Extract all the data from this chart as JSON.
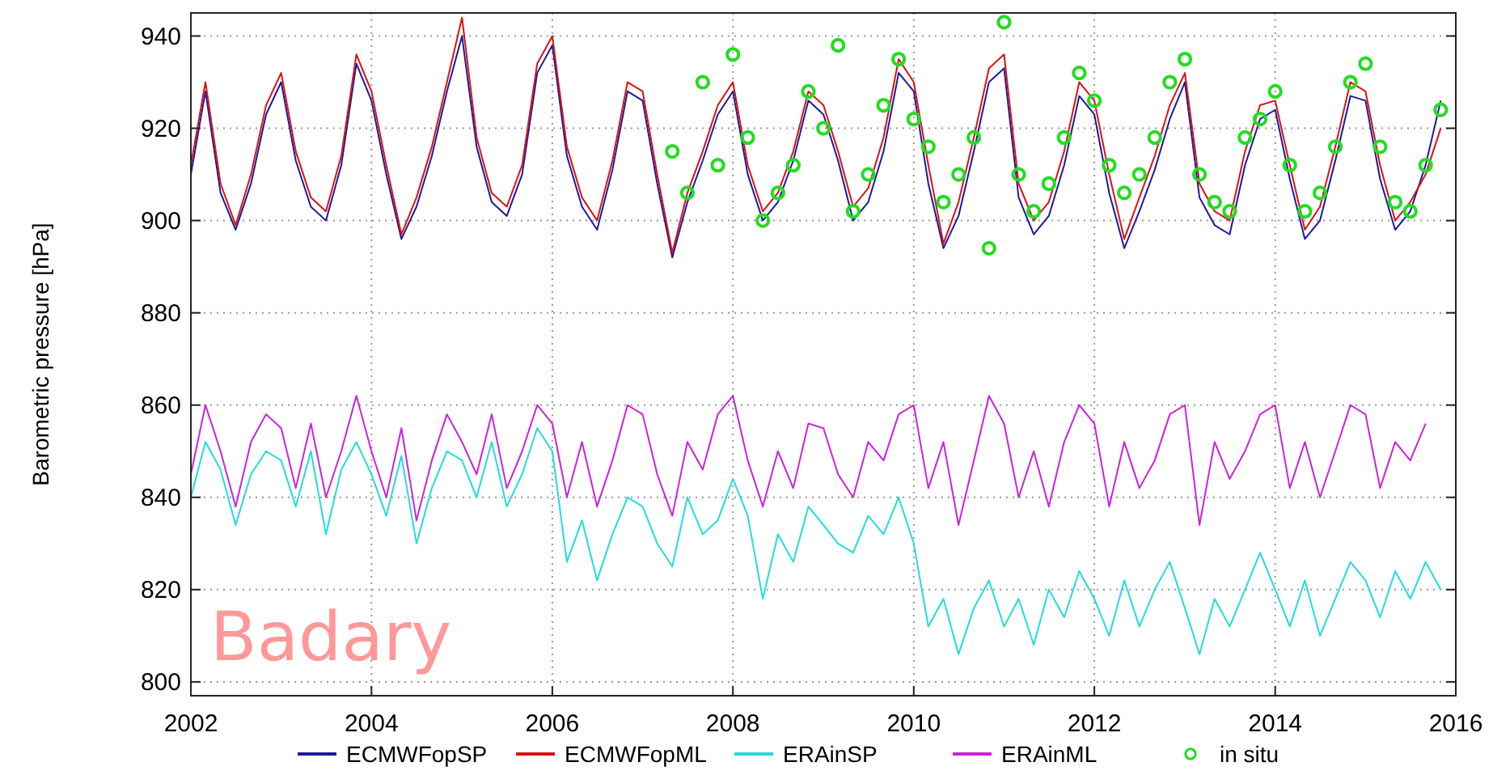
{
  "chart_data": {
    "type": "line",
    "ylabel": "Barometric pressure [hPa]",
    "annotations": [
      "Badary"
    ],
    "x": [
      "2002-01",
      "2002-03",
      "2002-05",
      "2002-07",
      "2002-09",
      "2002-11",
      "2003-01",
      "2003-03",
      "2003-05",
      "2003-07",
      "2003-09",
      "2003-11",
      "2004-01",
      "2004-03",
      "2004-05",
      "2004-07",
      "2004-09",
      "2004-11",
      "2005-01",
      "2005-03",
      "2005-05",
      "2005-07",
      "2005-09",
      "2005-11",
      "2006-01",
      "2006-03",
      "2006-05",
      "2006-07",
      "2006-09",
      "2006-11",
      "2007-01",
      "2007-03",
      "2007-05",
      "2007-07",
      "2007-09",
      "2007-11",
      "2008-01",
      "2008-03",
      "2008-05",
      "2008-07",
      "2008-09",
      "2008-11",
      "2009-01",
      "2009-03",
      "2009-05",
      "2009-07",
      "2009-09",
      "2009-11",
      "2010-01",
      "2010-03",
      "2010-05",
      "2010-07",
      "2010-09",
      "2010-11",
      "2011-01",
      "2011-03",
      "2011-05",
      "2011-07",
      "2011-09",
      "2011-11",
      "2012-01",
      "2012-03",
      "2012-05",
      "2012-07",
      "2012-09",
      "2012-11",
      "2013-01",
      "2013-03",
      "2013-05",
      "2013-07",
      "2013-09",
      "2013-11",
      "2014-01",
      "2014-03",
      "2014-05",
      "2014-07",
      "2014-09",
      "2014-11",
      "2015-01",
      "2015-03",
      "2015-05",
      "2015-07",
      "2015-09",
      "2015-11"
    ],
    "series": [
      {
        "name": "ECMWFopSP",
        "color": "#1a1aa0",
        "values": [
          910,
          928,
          906,
          898,
          908,
          923,
          930,
          913,
          903,
          900,
          912,
          934,
          926,
          910,
          896,
          903,
          914,
          928,
          940,
          916,
          904,
          901,
          910,
          932,
          938,
          914,
          903,
          898,
          911,
          928,
          926,
          908,
          892,
          904,
          913,
          923,
          928,
          910,
          900,
          904,
          913,
          926,
          923,
          913,
          900,
          904,
          915,
          932,
          928,
          908,
          894,
          901,
          915,
          930,
          933,
          905,
          897,
          901,
          912,
          927,
          923,
          906,
          894,
          902,
          911,
          922,
          930,
          905,
          899,
          897,
          912,
          922,
          924,
          909,
          896,
          900,
          913,
          927,
          926,
          909,
          898,
          902,
          912,
          926
        ]
      },
      {
        "name": "ECMWFopML",
        "color": "#dd1111",
        "values": [
          912,
          930,
          908,
          899,
          910,
          925,
          932,
          915,
          905,
          902,
          914,
          936,
          928,
          912,
          897,
          905,
          916,
          930,
          944,
          918,
          906,
          903,
          912,
          934,
          940,
          916,
          905,
          900,
          913,
          930,
          928,
          910,
          893,
          906,
          915,
          925,
          930,
          912,
          902,
          906,
          915,
          928,
          925,
          915,
          903,
          907,
          918,
          935,
          930,
          912,
          895,
          904,
          918,
          933,
          936,
          908,
          900,
          904,
          915,
          930,
          926,
          910,
          896,
          905,
          914,
          925,
          932,
          908,
          902,
          900,
          915,
          925,
          926,
          912,
          898,
          903,
          916,
          930,
          928,
          912,
          900,
          904,
          910,
          920
        ]
      },
      {
        "name": "ERAinSP",
        "color": "#22dddd",
        "values": [
          840,
          852,
          846,
          834,
          845,
          850,
          848,
          838,
          850,
          832,
          846,
          852,
          845,
          836,
          849,
          830,
          842,
          850,
          848,
          840,
          852,
          838,
          845,
          855,
          850,
          826,
          835,
          822,
          832,
          840,
          838,
          830,
          825,
          840,
          832,
          835,
          844,
          836,
          818,
          832,
          826,
          838,
          834,
          830,
          828,
          836,
          832,
          840,
          830,
          812,
          818,
          806,
          816,
          822,
          812,
          818,
          808,
          820,
          814,
          824,
          818,
          810,
          822,
          812,
          820,
          826,
          816,
          806,
          818,
          812,
          820,
          828,
          820,
          812,
          822,
          810,
          818,
          826,
          822,
          814,
          824,
          818,
          826,
          820
        ]
      },
      {
        "name": "ERAinML",
        "color": "#cc22dd",
        "values": [
          845,
          860,
          850,
          838,
          852,
          858,
          855,
          842,
          856,
          840,
          850,
          862,
          850,
          840,
          855,
          835,
          848,
          858,
          852,
          845,
          858,
          842,
          850,
          860,
          856,
          840,
          852,
          838,
          848,
          860,
          858,
          845,
          836,
          852,
          846,
          858,
          862,
          848,
          838,
          850,
          842,
          856,
          855,
          845,
          840,
          852,
          848,
          858,
          860,
          842,
          852,
          834,
          848,
          862,
          856,
          840,
          850,
          838,
          852,
          860,
          856,
          838,
          852,
          842,
          848,
          858,
          860,
          834,
          852,
          844,
          850,
          858,
          860,
          842,
          852,
          840,
          850,
          860,
          858,
          842,
          852,
          848,
          856,
          null
        ]
      },
      {
        "name": "in situ",
        "color": "#22dd22",
        "type": "scatter",
        "marker": "circle",
        "x": [
          "2007-05",
          "2007-07",
          "2007-09",
          "2007-11",
          "2008-01",
          "2008-03",
          "2008-05",
          "2008-07",
          "2008-09",
          "2008-11",
          "2009-01",
          "2009-03",
          "2009-05",
          "2009-07",
          "2009-09",
          "2009-11",
          "2010-01",
          "2010-03",
          "2010-05",
          "2010-07",
          "2010-09",
          "2010-11",
          "2011-01",
          "2011-03",
          "2011-05",
          "2011-07",
          "2011-09",
          "2011-11",
          "2012-01",
          "2012-03",
          "2012-05",
          "2012-07",
          "2012-09",
          "2012-11",
          "2013-01",
          "2013-03",
          "2013-05",
          "2013-07",
          "2013-09",
          "2013-11",
          "2014-01",
          "2014-03",
          "2014-05",
          "2014-07",
          "2014-09",
          "2014-11",
          "2015-01",
          "2015-03",
          "2015-05",
          "2015-07",
          "2015-09",
          "2015-11"
        ],
        "values": [
          915,
          906,
          930,
          912,
          936,
          918,
          900,
          906,
          912,
          928,
          920,
          938,
          902,
          910,
          925,
          935,
          922,
          916,
          904,
          910,
          918,
          894,
          943,
          910,
          902,
          908,
          918,
          932,
          926,
          912,
          906,
          910,
          918,
          930,
          935,
          910,
          904,
          902,
          918,
          922,
          928,
          912,
          902,
          906,
          916,
          930,
          934,
          916,
          904,
          902,
          912,
          924
        ]
      }
    ],
    "xlim": [
      "2002-01-01",
      "2016-01-01"
    ],
    "xticks": [
      {
        "value": "2002-01-01",
        "label": "2002"
      },
      {
        "value": "2004-01-01",
        "label": "2004"
      },
      {
        "value": "2006-01-01",
        "label": "2006"
      },
      {
        "value": "2008-01-01",
        "label": "2008"
      },
      {
        "value": "2010-01-01",
        "label": "2010"
      },
      {
        "value": "2012-01-01",
        "label": "2012"
      },
      {
        "value": "2014-01-01",
        "label": "2014"
      },
      {
        "value": "2016-01-01",
        "label": "2016"
      }
    ],
    "ylim": [
      797,
      945
    ],
    "yticks": [
      800,
      820,
      840,
      860,
      880,
      900,
      920,
      940
    ],
    "grid": true,
    "legend": "bottom",
    "marker": "none",
    "line_style": "solid"
  }
}
